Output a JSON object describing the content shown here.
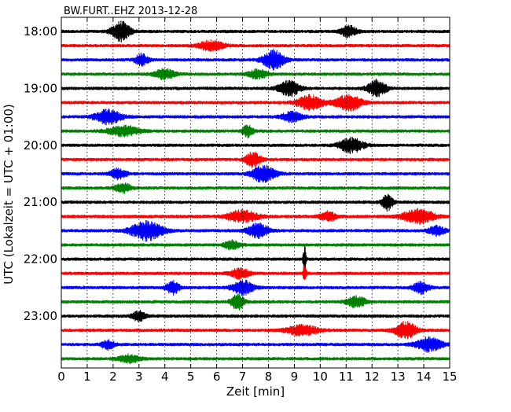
{
  "chart_data": {
    "type": "line",
    "title": "BW.FURT..EHZ 2013-12-28",
    "xlabel": "Zeit  [min]",
    "ylabel": "UTC (Lokalzeit = UTC + 01:00)",
    "xlim": [
      0,
      15
    ],
    "x_ticks": [
      "0",
      "1",
      "2",
      "3",
      "4",
      "5",
      "6",
      "7",
      "8",
      "9",
      "10",
      "11",
      "12",
      "13",
      "14",
      "15"
    ],
    "y_tick_labels": [
      "18:00",
      "19:00",
      "20:00",
      "21:00",
      "22:00",
      "23:00"
    ],
    "trace_interval_minutes": 15,
    "grid": true,
    "colors": [
      "#000000",
      "#ff0000",
      "#0000ff",
      "#008000"
    ],
    "traces": [
      {
        "start": "18:00",
        "amplitude": 1.0,
        "events": [
          [
            2.3,
            3.0,
            0.35
          ],
          [
            11.1,
            1.8,
            0.3
          ]
        ]
      },
      {
        "start": "18:15",
        "amplitude": 1.0,
        "events": [
          [
            5.8,
            1.5,
            0.5
          ]
        ]
      },
      {
        "start": "18:30",
        "amplitude": 1.0,
        "events": [
          [
            3.1,
            1.8,
            0.25
          ],
          [
            8.2,
            3.0,
            0.4
          ]
        ]
      },
      {
        "start": "18:45",
        "amplitude": 1.0,
        "events": [
          [
            4.0,
            1.5,
            0.4
          ],
          [
            7.6,
            1.4,
            0.35
          ]
        ]
      },
      {
        "start": "19:00",
        "amplitude": 1.0,
        "events": [
          [
            8.8,
            2.4,
            0.4
          ],
          [
            12.2,
            2.6,
            0.35
          ]
        ]
      },
      {
        "start": "19:15",
        "amplitude": 1.0,
        "events": [
          [
            9.6,
            2.2,
            0.5
          ],
          [
            11.1,
            2.4,
            0.5
          ]
        ]
      },
      {
        "start": "19:30",
        "amplitude": 1.0,
        "events": [
          [
            1.8,
            2.2,
            0.5
          ],
          [
            8.9,
            1.5,
            0.4
          ]
        ]
      },
      {
        "start": "19:45",
        "amplitude": 1.0,
        "events": [
          [
            2.4,
            1.6,
            0.6
          ],
          [
            7.2,
            1.8,
            0.2
          ]
        ]
      },
      {
        "start": "20:00",
        "amplitude": 1.0,
        "events": [
          [
            11.2,
            2.3,
            0.45
          ]
        ]
      },
      {
        "start": "20:15",
        "amplitude": 1.0,
        "events": [
          [
            7.4,
            2.2,
            0.3
          ]
        ]
      },
      {
        "start": "20:30",
        "amplitude": 1.0,
        "events": [
          [
            2.2,
            1.6,
            0.3
          ],
          [
            7.8,
            2.6,
            0.45
          ]
        ]
      },
      {
        "start": "20:45",
        "amplitude": 1.0,
        "events": [
          [
            2.4,
            1.4,
            0.3
          ]
        ]
      },
      {
        "start": "21:00",
        "amplitude": 1.0,
        "events": [
          [
            12.6,
            2.6,
            0.2
          ]
        ]
      },
      {
        "start": "21:15",
        "amplitude": 1.0,
        "events": [
          [
            7.0,
            1.8,
            0.6
          ],
          [
            10.3,
            1.5,
            0.3
          ],
          [
            13.8,
            2.2,
            0.6
          ]
        ]
      },
      {
        "start": "21:30",
        "amplitude": 1.0,
        "events": [
          [
            3.3,
            3.0,
            0.6
          ],
          [
            7.6,
            2.2,
            0.4
          ],
          [
            14.5,
            1.5,
            0.3
          ]
        ]
      },
      {
        "start": "21:45",
        "amplitude": 1.0,
        "events": [
          [
            6.6,
            1.4,
            0.3
          ]
        ]
      },
      {
        "start": "22:00",
        "amplitude": 1.0,
        "events": [
          [
            9.4,
            4.0,
            0.06
          ]
        ]
      },
      {
        "start": "22:15",
        "amplitude": 1.0,
        "events": [
          [
            6.9,
            1.5,
            0.35
          ],
          [
            9.4,
            3.2,
            0.06
          ]
        ]
      },
      {
        "start": "22:30",
        "amplitude": 1.0,
        "events": [
          [
            4.3,
            2.0,
            0.25
          ],
          [
            7.0,
            2.2,
            0.4
          ],
          [
            13.9,
            1.8,
            0.3
          ]
        ]
      },
      {
        "start": "22:45",
        "amplitude": 1.0,
        "events": [
          [
            6.8,
            2.4,
            0.25
          ],
          [
            11.4,
            1.8,
            0.35
          ]
        ]
      },
      {
        "start": "23:00",
        "amplitude": 1.0,
        "events": [
          [
            3.0,
            1.6,
            0.25
          ]
        ]
      },
      {
        "start": "23:15",
        "amplitude": 1.0,
        "events": [
          [
            9.3,
            1.6,
            0.6
          ],
          [
            13.3,
            2.6,
            0.4
          ]
        ]
      },
      {
        "start": "23:30",
        "amplitude": 1.0,
        "events": [
          [
            1.8,
            1.4,
            0.25
          ],
          [
            14.2,
            2.2,
            0.5
          ]
        ]
      },
      {
        "start": "23:45",
        "amplitude": 1.0,
        "events": [
          [
            2.6,
            1.2,
            0.4
          ]
        ]
      }
    ]
  }
}
